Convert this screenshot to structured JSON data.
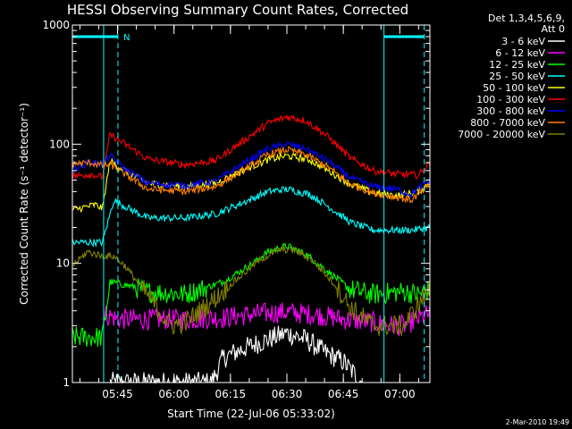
{
  "chart_data": {
    "type": "line",
    "title": "HESSI Observing Summary Count Rates, Corrected",
    "xlabel": "Start Time (22-Jul-06 05:33:02)",
    "ylabel": "Corrected Count Rate (s⁻¹ detector⁻¹)",
    "yscale": "log",
    "ylim": [
      1,
      1000
    ],
    "xlim_minutes_after_start": [
      0,
      95
    ],
    "yticks": [
      {
        "value": 1,
        "label": "1"
      },
      {
        "value": 10,
        "label": "10"
      },
      {
        "value": 100,
        "label": "100"
      },
      {
        "value": 1000,
        "label": "1000"
      }
    ],
    "xticks": [
      {
        "label": "05:45",
        "minutes": 12
      },
      {
        "label": "06:00",
        "minutes": 27
      },
      {
        "label": "06:15",
        "minutes": 42
      },
      {
        "label": "06:30",
        "minutes": 57
      },
      {
        "label": "06:45",
        "minutes": 72
      },
      {
        "label": "07:00",
        "minutes": 87
      }
    ],
    "legend_header": [
      "Det 1,3,4,5,6,9,",
      "Att 0"
    ],
    "legend_placement": "right",
    "night_marker_label": "N",
    "vertical_markers": [
      {
        "minutes": 8.3,
        "style": "solid",
        "color": "#00ffff"
      },
      {
        "minutes": 12.1,
        "style": "dashed",
        "color": "#00ffff"
      },
      {
        "minutes": 82.8,
        "style": "solid",
        "color": "#00ffff"
      },
      {
        "minutes": 93.5,
        "style": "dashed",
        "color": "#00ffff"
      }
    ],
    "series": [
      {
        "name": "3 - 6 keV",
        "color": "#ffffff",
        "points": [
          [
            10,
            1
          ],
          [
            37,
            1
          ],
          [
            40,
            1.6
          ],
          [
            45,
            1.9
          ],
          [
            52,
            2.3
          ],
          [
            57,
            2.6
          ],
          [
            62,
            2.3
          ],
          [
            67,
            1.8
          ],
          [
            72,
            1.5
          ],
          [
            77,
            1
          ]
        ]
      },
      {
        "name": "6 - 12 keV",
        "color": "#ff00ff",
        "points": [
          [
            8.5,
            3.8
          ],
          [
            12,
            3.4
          ],
          [
            20,
            3.4
          ],
          [
            30,
            3.4
          ],
          [
            40,
            3.5
          ],
          [
            50,
            3.8
          ],
          [
            57,
            3.9
          ],
          [
            65,
            3.7
          ],
          [
            72,
            3.4
          ],
          [
            80,
            3.2
          ],
          [
            85,
            3.0
          ],
          [
            88,
            3.0
          ],
          [
            95,
            3.8
          ]
        ]
      },
      {
        "name": "12 - 25 keV",
        "color": "#00ff00",
        "points": [
          [
            0,
            2.4
          ],
          [
            8,
            2.4
          ],
          [
            10,
            7
          ],
          [
            15,
            6.5
          ],
          [
            20,
            5.8
          ],
          [
            30,
            5.5
          ],
          [
            40,
            7
          ],
          [
            48,
            10
          ],
          [
            52,
            12.5
          ],
          [
            57,
            14
          ],
          [
            62,
            12
          ],
          [
            68,
            8.5
          ],
          [
            74,
            6
          ],
          [
            80,
            5.5
          ],
          [
            88,
            5.8
          ],
          [
            92,
            5.5
          ],
          [
            95,
            6
          ]
        ]
      },
      {
        "name": "25 - 50 keV",
        "color": "#00ffff",
        "points": [
          [
            0,
            15
          ],
          [
            4,
            15
          ],
          [
            8,
            15
          ],
          [
            11,
            34
          ],
          [
            14,
            30
          ],
          [
            20,
            24
          ],
          [
            30,
            24
          ],
          [
            38,
            26
          ],
          [
            46,
            33
          ],
          [
            52,
            40
          ],
          [
            57,
            42
          ],
          [
            63,
            38
          ],
          [
            68,
            30
          ],
          [
            74,
            22
          ],
          [
            80,
            19
          ],
          [
            86,
            19
          ],
          [
            90,
            19
          ],
          [
            95,
            20
          ]
        ]
      },
      {
        "name": "50 - 100 keV",
        "color": "#ffff00",
        "points": [
          [
            0,
            28
          ],
          [
            6,
            31
          ],
          [
            8,
            29
          ],
          [
            10,
            72
          ],
          [
            14,
            60
          ],
          [
            20,
            47
          ],
          [
            30,
            44
          ],
          [
            38,
            47
          ],
          [
            46,
            62
          ],
          [
            52,
            74
          ],
          [
            57,
            80
          ],
          [
            63,
            74
          ],
          [
            68,
            60
          ],
          [
            74,
            46
          ],
          [
            80,
            39
          ],
          [
            86,
            37
          ],
          [
            92,
            40
          ],
          [
            95,
            48
          ]
        ]
      },
      {
        "name": "100 - 300 keV",
        "color": "#ff0000",
        "points": [
          [
            0,
            54
          ],
          [
            5,
            56
          ],
          [
            8,
            53
          ],
          [
            10,
            120
          ],
          [
            13,
            105
          ],
          [
            20,
            75
          ],
          [
            30,
            67
          ],
          [
            38,
            73
          ],
          [
            46,
            110
          ],
          [
            52,
            150
          ],
          [
            57,
            170
          ],
          [
            62,
            158
          ],
          [
            68,
            115
          ],
          [
            74,
            76
          ],
          [
            80,
            60
          ],
          [
            86,
            56
          ],
          [
            92,
            55
          ],
          [
            95,
            70
          ]
        ]
      },
      {
        "name": "300 - 800 keV",
        "color": "#0000ff",
        "points": [
          [
            0,
            60
          ],
          [
            4,
            70
          ],
          [
            8,
            68
          ],
          [
            10,
            80
          ],
          [
            14,
            62
          ],
          [
            20,
            47
          ],
          [
            30,
            45
          ],
          [
            38,
            49
          ],
          [
            46,
            70
          ],
          [
            52,
            92
          ],
          [
            57,
            100
          ],
          [
            62,
            92
          ],
          [
            68,
            72
          ],
          [
            74,
            52
          ],
          [
            80,
            44
          ],
          [
            86,
            42
          ],
          [
            90,
            38
          ],
          [
            95,
            50
          ]
        ]
      },
      {
        "name": "800 - 7000 keV",
        "color": "#ff8000",
        "points": [
          [
            0,
            68
          ],
          [
            5,
            70
          ],
          [
            8,
            66
          ],
          [
            10,
            68
          ],
          [
            14,
            56
          ],
          [
            20,
            42
          ],
          [
            30,
            40
          ],
          [
            38,
            44
          ],
          [
            46,
            62
          ],
          [
            52,
            82
          ],
          [
            57,
            90
          ],
          [
            62,
            82
          ],
          [
            68,
            64
          ],
          [
            74,
            46
          ],
          [
            80,
            39
          ],
          [
            86,
            36
          ],
          [
            90,
            34
          ],
          [
            95,
            45
          ]
        ]
      },
      {
        "name": "7000 - 20000 keV",
        "color": "#808000",
        "points": [
          [
            0,
            9.5
          ],
          [
            4,
            12.5
          ],
          [
            8,
            11.5
          ],
          [
            11,
            11.5
          ],
          [
            14,
            9.5
          ],
          [
            20,
            5.4
          ],
          [
            26,
            3
          ],
          [
            30,
            3.2
          ],
          [
            36,
            4.5
          ],
          [
            44,
            7.5
          ],
          [
            50,
            10.8
          ],
          [
            55,
            13
          ],
          [
            59,
            13
          ],
          [
            64,
            10.5
          ],
          [
            70,
            6.5
          ],
          [
            74,
            4.2
          ],
          [
            80,
            3
          ],
          [
            88,
            3
          ],
          [
            92,
            4.5
          ],
          [
            95,
            6
          ]
        ]
      }
    ],
    "timestamp": "2-Mar-2010 19:49"
  }
}
